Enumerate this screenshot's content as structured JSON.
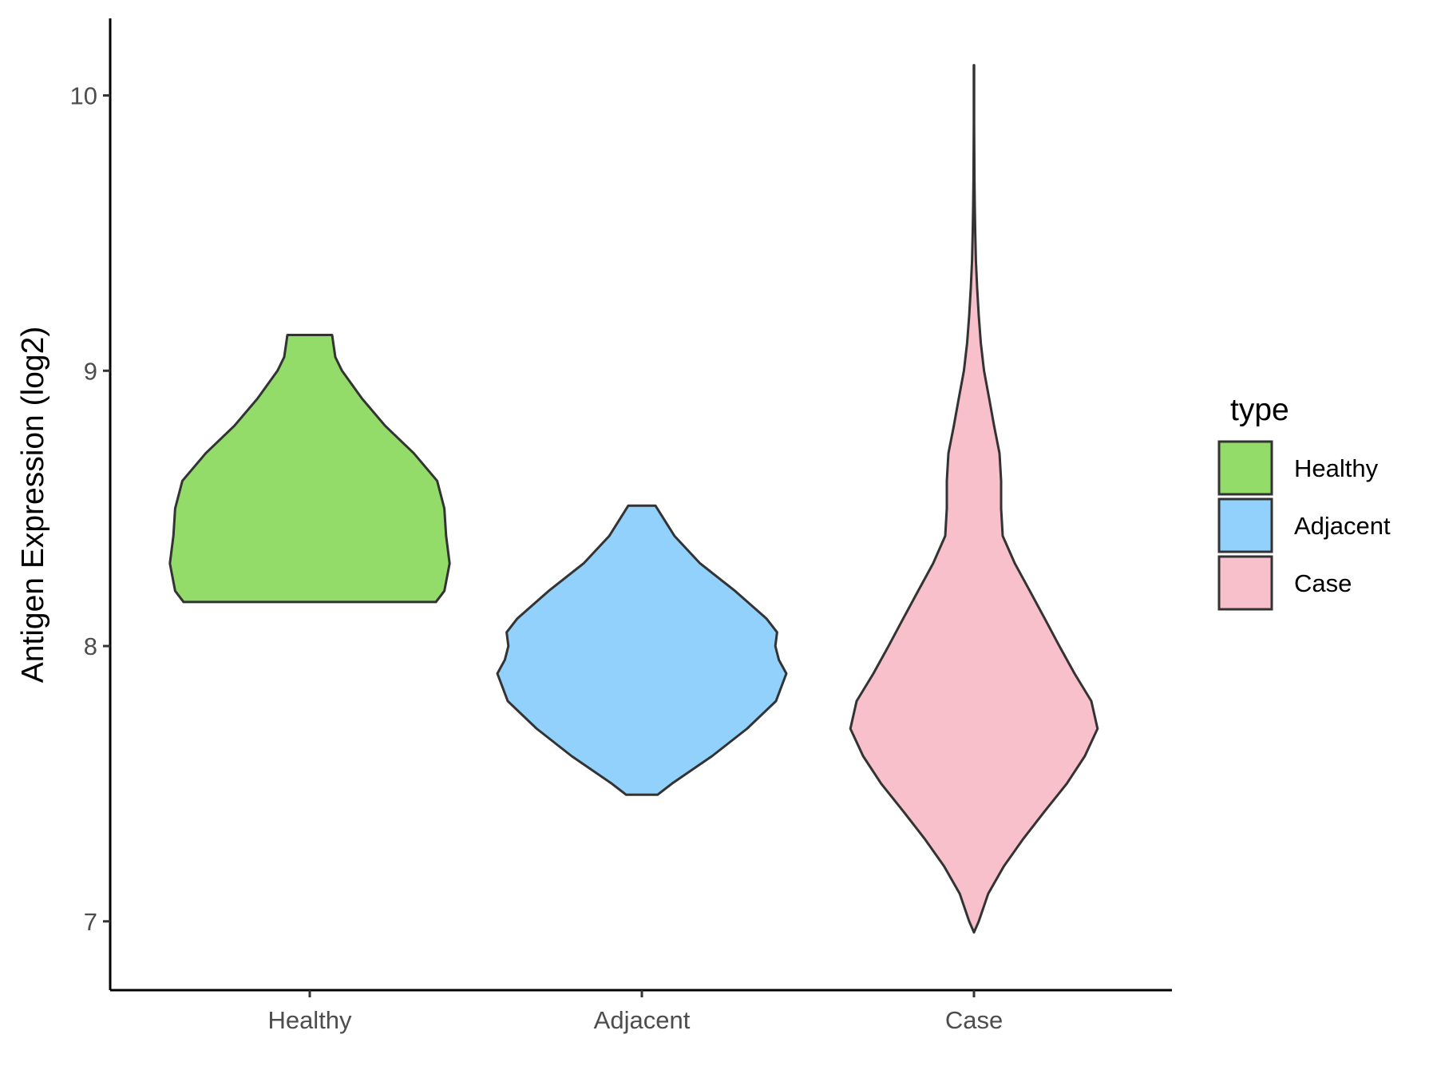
{
  "chart_data": {
    "type": "violin",
    "title": "",
    "xlabel": "",
    "ylabel": "Antigen Expression (log2)",
    "ylim": [
      6.75,
      10.28
    ],
    "yticks": [
      7,
      8,
      9,
      10
    ],
    "categories": [
      "Healthy",
      "Adjacent",
      "Case"
    ],
    "colors": {
      "Healthy": "#93dc6a",
      "Adjacent": "#91d1fc",
      "Case": "#f7c0ca",
      "outline": "#333333"
    },
    "legend": {
      "title": "type",
      "position": "right",
      "entries": [
        "Healthy",
        "Adjacent",
        "Case"
      ]
    },
    "grid": false,
    "violins": [
      {
        "name": "Healthy",
        "min": 8.16,
        "max": 9.13,
        "profile": [
          [
            8.16,
            0.79
          ],
          [
            8.2,
            0.843
          ],
          [
            8.3,
            0.876
          ],
          [
            8.4,
            0.854
          ],
          [
            8.5,
            0.843
          ],
          [
            8.6,
            0.798
          ],
          [
            8.7,
            0.652
          ],
          [
            8.8,
            0.472
          ],
          [
            8.9,
            0.326
          ],
          [
            9.0,
            0.202
          ],
          [
            9.05,
            0.16
          ],
          [
            9.13,
            0.14
          ]
        ]
      },
      {
        "name": "Adjacent",
        "min": 7.46,
        "max": 8.51,
        "profile": [
          [
            7.46,
            0.099
          ],
          [
            7.5,
            0.188
          ],
          [
            7.6,
            0.439
          ],
          [
            7.7,
            0.659
          ],
          [
            7.8,
            0.84
          ],
          [
            7.9,
            0.905
          ],
          [
            7.95,
            0.858
          ],
          [
            8.0,
            0.836
          ],
          [
            8.05,
            0.847
          ],
          [
            8.1,
            0.78
          ],
          [
            8.2,
            0.584
          ],
          [
            8.3,
            0.365
          ],
          [
            8.4,
            0.204
          ],
          [
            8.51,
            0.085
          ]
        ]
      },
      {
        "name": "Case",
        "min": 6.96,
        "max": 10.11,
        "profile": [
          [
            6.96,
            0.0
          ],
          [
            7.0,
            0.03
          ],
          [
            7.1,
            0.089
          ],
          [
            7.2,
            0.187
          ],
          [
            7.3,
            0.309
          ],
          [
            7.4,
            0.443
          ],
          [
            7.5,
            0.581
          ],
          [
            7.6,
            0.694
          ],
          [
            7.7,
            0.774
          ],
          [
            7.8,
            0.735
          ],
          [
            7.9,
            0.63
          ],
          [
            8.0,
            0.535
          ],
          [
            8.1,
            0.443
          ],
          [
            8.2,
            0.35
          ],
          [
            8.3,
            0.256
          ],
          [
            8.4,
            0.18
          ],
          [
            8.5,
            0.17
          ],
          [
            8.6,
            0.17
          ],
          [
            8.7,
            0.16
          ],
          [
            8.8,
            0.126
          ],
          [
            8.9,
            0.095
          ],
          [
            9.0,
            0.063
          ],
          [
            9.1,
            0.043
          ],
          [
            9.2,
            0.03
          ],
          [
            9.3,
            0.02
          ],
          [
            9.4,
            0.012
          ],
          [
            9.5,
            0.008
          ],
          [
            9.6,
            0.005
          ],
          [
            9.7,
            0.003
          ],
          [
            9.8,
            0.002
          ],
          [
            9.9,
            0.001
          ],
          [
            10.11,
            0.001
          ]
        ]
      }
    ]
  }
}
